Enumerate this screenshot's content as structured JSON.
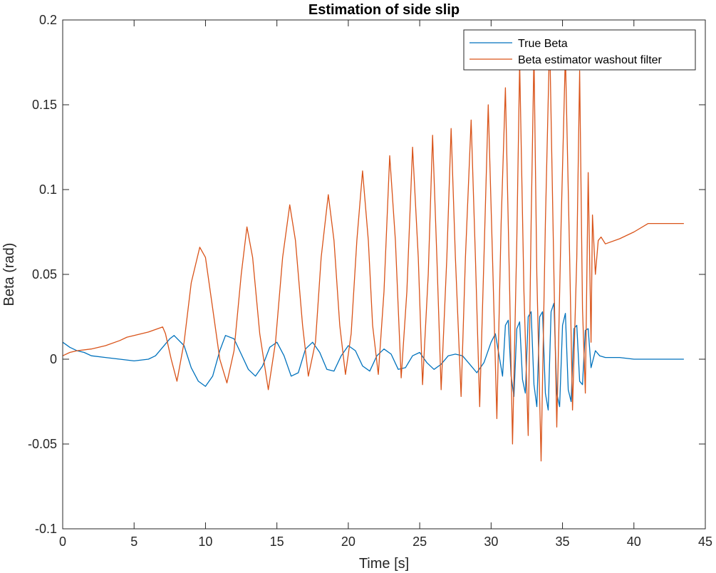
{
  "chart_data": {
    "type": "line",
    "title": "Estimation of side slip",
    "xlabel": "Time [s]",
    "ylabel": "Beta (rad)",
    "xlim": [
      0,
      45
    ],
    "ylim": [
      -0.1,
      0.2
    ],
    "xticks": [
      "0",
      "5",
      "10",
      "15",
      "20",
      "25",
      "30",
      "35",
      "40",
      "45"
    ],
    "yticks": [
      "-0.1",
      "-0.05",
      "0",
      "0.05",
      "0.1",
      "0.15",
      "0.2"
    ],
    "grid": false,
    "legend_position": "top-right",
    "series": [
      {
        "name": "True Beta",
        "color": "#0072BD",
        "points": [
          [
            0,
            0.01
          ],
          [
            0.5,
            0.007
          ],
          [
            1,
            0.005
          ],
          [
            1.5,
            0.004
          ],
          [
            2,
            0.002
          ],
          [
            3,
            0.001
          ],
          [
            4,
            0.0
          ],
          [
            5,
            -0.001
          ],
          [
            6,
            0.0
          ],
          [
            6.5,
            0.002
          ],
          [
            7,
            0.007
          ],
          [
            7.5,
            0.012
          ],
          [
            7.8,
            0.014
          ],
          [
            8.5,
            0.008
          ],
          [
            9,
            -0.005
          ],
          [
            9.5,
            -0.013
          ],
          [
            10,
            -0.016
          ],
          [
            10.5,
            -0.01
          ],
          [
            11,
            0.005
          ],
          [
            11.4,
            0.014
          ],
          [
            12,
            0.012
          ],
          [
            12.5,
            0.003
          ],
          [
            13,
            -0.006
          ],
          [
            13.5,
            -0.01
          ],
          [
            14,
            -0.004
          ],
          [
            14.5,
            0.007
          ],
          [
            15,
            0.01
          ],
          [
            15.5,
            0.002
          ],
          [
            16,
            -0.01
          ],
          [
            16.5,
            -0.008
          ],
          [
            17,
            0.006
          ],
          [
            17.5,
            0.01
          ],
          [
            18,
            0.004
          ],
          [
            18.5,
            -0.006
          ],
          [
            19,
            -0.007
          ],
          [
            19.5,
            0.002
          ],
          [
            20,
            0.008
          ],
          [
            20.5,
            0.005
          ],
          [
            21,
            -0.004
          ],
          [
            21.5,
            -0.007
          ],
          [
            22,
            0.002
          ],
          [
            22.5,
            0.006
          ],
          [
            23,
            0.003
          ],
          [
            23.5,
            -0.006
          ],
          [
            24,
            -0.005
          ],
          [
            24.5,
            0.002
          ],
          [
            25,
            0.004
          ],
          [
            25.5,
            -0.002
          ],
          [
            26,
            -0.006
          ],
          [
            26.5,
            -0.003
          ],
          [
            27,
            0.002
          ],
          [
            27.5,
            0.003
          ],
          [
            28,
            0.002
          ],
          [
            28.5,
            -0.003
          ],
          [
            29,
            -0.008
          ],
          [
            29.5,
            -0.002
          ],
          [
            30,
            0.01
          ],
          [
            30.3,
            0.015
          ],
          [
            30.6,
            0.0
          ],
          [
            30.8,
            -0.01
          ],
          [
            31,
            0.02
          ],
          [
            31.2,
            0.023
          ],
          [
            31.4,
            -0.01
          ],
          [
            31.6,
            -0.022
          ],
          [
            31.8,
            0.018
          ],
          [
            32,
            0.022
          ],
          [
            32.2,
            -0.012
          ],
          [
            32.4,
            -0.02
          ],
          [
            32.6,
            0.025
          ],
          [
            32.8,
            0.028
          ],
          [
            33,
            -0.015
          ],
          [
            33.2,
            -0.028
          ],
          [
            33.4,
            0.025
          ],
          [
            33.6,
            0.028
          ],
          [
            33.8,
            -0.02
          ],
          [
            34,
            -0.03
          ],
          [
            34.2,
            0.028
          ],
          [
            34.4,
            0.033
          ],
          [
            34.6,
            -0.02
          ],
          [
            34.8,
            -0.028
          ],
          [
            35,
            0.02
          ],
          [
            35.2,
            0.027
          ],
          [
            35.4,
            -0.018
          ],
          [
            35.6,
            -0.025
          ],
          [
            35.8,
            0.018
          ],
          [
            36,
            0.02
          ],
          [
            36.2,
            -0.013
          ],
          [
            36.4,
            -0.015
          ],
          [
            36.6,
            0.017
          ],
          [
            36.8,
            0.018
          ],
          [
            37,
            -0.005
          ],
          [
            37.3,
            0.005
          ],
          [
            37.6,
            0.002
          ],
          [
            38,
            0.001
          ],
          [
            39,
            0.001
          ],
          [
            40,
            0.0
          ],
          [
            41,
            0.0
          ],
          [
            41.5,
            0.0
          ],
          [
            43.5,
            0.0
          ]
        ]
      },
      {
        "name": "Beta estimator washout filter",
        "color": "#D95319",
        "points": [
          [
            0,
            0.002
          ],
          [
            0.5,
            0.004
          ],
          [
            1,
            0.005
          ],
          [
            2,
            0.006
          ],
          [
            3,
            0.008
          ],
          [
            4,
            0.011
          ],
          [
            4.5,
            0.013
          ],
          [
            5,
            0.014
          ],
          [
            6,
            0.016
          ],
          [
            7,
            0.019
          ],
          [
            7.2,
            0.015
          ],
          [
            7.6,
            0.0
          ],
          [
            8,
            -0.013
          ],
          [
            8.5,
            0.01
          ],
          [
            9,
            0.045
          ],
          [
            9.6,
            0.066
          ],
          [
            10,
            0.06
          ],
          [
            10.5,
            0.03
          ],
          [
            11,
            0.0
          ],
          [
            11.5,
            -0.014
          ],
          [
            12,
            0.005
          ],
          [
            12.5,
            0.05
          ],
          [
            12.9,
            0.078
          ],
          [
            13.3,
            0.06
          ],
          [
            13.8,
            0.015
          ],
          [
            14.4,
            -0.018
          ],
          [
            14.9,
            0.01
          ],
          [
            15.4,
            0.06
          ],
          [
            15.9,
            0.091
          ],
          [
            16.3,
            0.07
          ],
          [
            16.8,
            0.02
          ],
          [
            17.2,
            -0.01
          ],
          [
            17.7,
            0.01
          ],
          [
            18.1,
            0.06
          ],
          [
            18.6,
            0.097
          ],
          [
            19,
            0.07
          ],
          [
            19.4,
            0.02
          ],
          [
            19.8,
            -0.009
          ],
          [
            20.2,
            0.015
          ],
          [
            20.6,
            0.07
          ],
          [
            21,
            0.111
          ],
          [
            21.4,
            0.07
          ],
          [
            21.7,
            0.02
          ],
          [
            22.1,
            -0.009
          ],
          [
            22.5,
            0.04
          ],
          [
            22.9,
            0.12
          ],
          [
            23.3,
            0.07
          ],
          [
            23.7,
            -0.011
          ],
          [
            24.1,
            0.04
          ],
          [
            24.5,
            0.125
          ],
          [
            24.9,
            0.06
          ],
          [
            25.2,
            -0.015
          ],
          [
            25.6,
            0.05
          ],
          [
            25.9,
            0.132
          ],
          [
            26.2,
            0.06
          ],
          [
            26.5,
            -0.018
          ],
          [
            26.9,
            0.06
          ],
          [
            27.2,
            0.136
          ],
          [
            27.5,
            0.06
          ],
          [
            27.9,
            -0.022
          ],
          [
            28.2,
            0.06
          ],
          [
            28.6,
            0.141
          ],
          [
            28.9,
            0.06
          ],
          [
            29.2,
            -0.028
          ],
          [
            29.5,
            0.06
          ],
          [
            29.8,
            0.15
          ],
          [
            30.1,
            0.06
          ],
          [
            30.4,
            -0.035
          ],
          [
            30.7,
            0.08
          ],
          [
            31,
            0.16
          ],
          [
            31.3,
            0.04
          ],
          [
            31.5,
            -0.05
          ],
          [
            31.8,
            0.07
          ],
          [
            32,
            0.175
          ],
          [
            32.3,
            0.04
          ],
          [
            32.6,
            -0.045
          ],
          [
            32.8,
            0.08
          ],
          [
            33,
            0.18
          ],
          [
            33.2,
            0.05
          ],
          [
            33.5,
            -0.06
          ],
          [
            33.8,
            0.08
          ],
          [
            34.1,
            0.19
          ],
          [
            34.4,
            0.05
          ],
          [
            34.6,
            -0.04
          ],
          [
            34.9,
            0.08
          ],
          [
            35.2,
            0.18
          ],
          [
            35.5,
            0.06
          ],
          [
            35.7,
            -0.03
          ],
          [
            36,
            0.06
          ],
          [
            36.2,
            0.17
          ],
          [
            36.4,
            0.03
          ],
          [
            36.6,
            -0.02
          ],
          [
            36.8,
            0.11
          ],
          [
            37,
            0.01
          ],
          [
            37.1,
            0.085
          ],
          [
            37.3,
            0.05
          ],
          [
            37.5,
            0.07
          ],
          [
            37.7,
            0.072
          ],
          [
            38,
            0.068
          ],
          [
            39,
            0.071
          ],
          [
            40,
            0.075
          ],
          [
            41,
            0.08
          ],
          [
            43.5,
            0.08
          ]
        ]
      }
    ]
  }
}
